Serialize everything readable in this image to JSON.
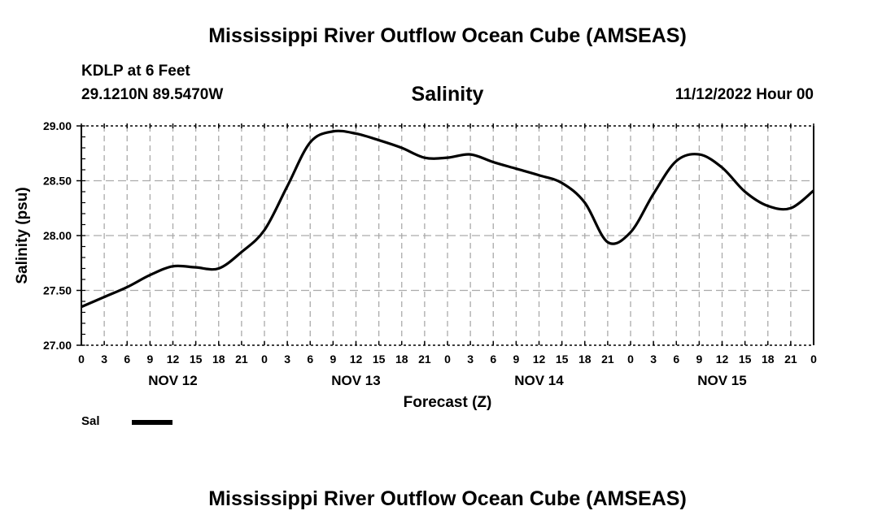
{
  "header": {
    "title": "Mississippi River Outflow Ocean Cube (AMSEAS)",
    "station": "KDLP at 6 Feet",
    "coords": "29.1210N  89.5470W",
    "subtitle": "Salinity",
    "datetime": "11/12/2022 Hour 00"
  },
  "footer": {
    "title": "Mississippi River Outflow Ocean Cube (AMSEAS)"
  },
  "chart_data": {
    "type": "line",
    "title": "Salinity",
    "xlabel": "Forecast (Z)",
    "ylabel": "Salinity (psu)",
    "ylim": [
      27.0,
      29.0
    ],
    "yticks": [
      "27.00",
      "27.50",
      "28.00",
      "28.50",
      "29.00"
    ],
    "xlim_hours": [
      0,
      96
    ],
    "xtick_labels": [
      "0",
      "3",
      "6",
      "9",
      "12",
      "15",
      "18",
      "21",
      "0",
      "3",
      "6",
      "9",
      "12",
      "15",
      "18",
      "21",
      "0",
      "3",
      "6",
      "9",
      "12",
      "15",
      "18",
      "21",
      "0",
      "3",
      "6",
      "9",
      "12",
      "15",
      "18",
      "21",
      "0"
    ],
    "day_labels": [
      "NOV 12",
      "NOV 13",
      "NOV 14",
      "NOV 15"
    ],
    "grid": true,
    "legend": {
      "position": "bottom-left",
      "entries": [
        "Sal"
      ]
    },
    "series": [
      {
        "name": "Sal",
        "color": "#000000",
        "x_hours": [
          0,
          3,
          6,
          9,
          12,
          15,
          18,
          21,
          24,
          27,
          30,
          33,
          36,
          39,
          42,
          45,
          48,
          51,
          54,
          57,
          60,
          63,
          66,
          69,
          72,
          75,
          78,
          81,
          84,
          87,
          90,
          93,
          96
        ],
        "values": [
          27.35,
          27.44,
          27.53,
          27.64,
          27.72,
          27.71,
          27.7,
          27.85,
          28.05,
          28.45,
          28.85,
          28.95,
          28.93,
          28.87,
          28.8,
          28.71,
          28.71,
          28.74,
          28.67,
          28.61,
          28.55,
          28.48,
          28.3,
          27.94,
          28.03,
          28.38,
          28.68,
          28.74,
          28.62,
          28.4,
          28.27,
          28.25,
          28.41
        ]
      }
    ]
  }
}
